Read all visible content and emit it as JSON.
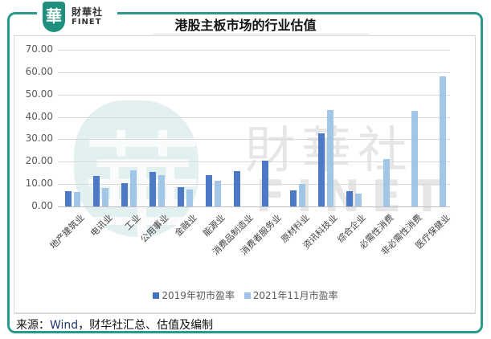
{
  "brand": {
    "logo_glyph": "華",
    "name_cn": "財華社",
    "name_en": "FINET",
    "watermark_cn": "財華社",
    "watermark_en": "FINET",
    "frame_color": "#2a9a8c"
  },
  "header": {
    "title": "港股主板市场的行业估值"
  },
  "yaxis": {
    "ticks": [
      "70.00",
      "60.00",
      "50.00",
      "40.00",
      "30.00",
      "20.00",
      "10.00",
      "0.00"
    ]
  },
  "legend": {
    "items": [
      {
        "label": "2019年初市盈率",
        "color": "#4472c4"
      },
      {
        "label": "2021年11月市盈率",
        "color": "#9dc3e6"
      }
    ]
  },
  "footer": {
    "source_prefix": "来源：",
    "source_en": "Wind",
    "source_rest": "，财华社汇总、估值及编制"
  },
  "chart_data": {
    "type": "bar",
    "title": "港股主板市场的行业估值",
    "xlabel": "",
    "ylabel": "",
    "ylim": [
      0,
      70
    ],
    "yticks": [
      0,
      10,
      20,
      30,
      40,
      50,
      60,
      70
    ],
    "grid": true,
    "legend_position": "bottom",
    "categories": [
      "地产建筑业",
      "电讯业",
      "工业",
      "公用事业",
      "金融业",
      "能源业",
      "消费品制造业",
      "消费者服务业",
      "原材料业",
      "资讯科技业",
      "综合企业",
      "必需性消费",
      "非必需性消费",
      "医疗保健业"
    ],
    "series": [
      {
        "name": "2019年初市盈率",
        "color": "#4472c4",
        "values": [
          6.8,
          13.6,
          10.4,
          15.4,
          8.6,
          14.0,
          15.8,
          20.4,
          7.3,
          32.7,
          6.8,
          null,
          null,
          null
        ]
      },
      {
        "name": "2021年11月市盈率",
        "color": "#9dc3e6",
        "values": [
          6.5,
          8.4,
          16.1,
          14.0,
          7.5,
          11.6,
          null,
          null,
          10.0,
          43.1,
          5.8,
          21.1,
          42.8,
          58.1
        ]
      }
    ]
  }
}
